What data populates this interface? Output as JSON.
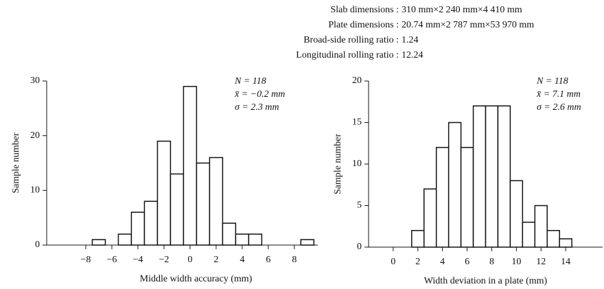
{
  "header": {
    "lines": [
      {
        "label": "Slab dimensions :",
        "value": "310 mm×2 240 mm×4 410 mm"
      },
      {
        "label": "Plate dimensions :",
        "value": "20.74 mm×2 787 mm×53 970 mm"
      },
      {
        "label": "Broad-side rolling ratio :",
        "value": "1.24"
      },
      {
        "label": "Longitudinal rolling ratio :",
        "value": "12.24"
      }
    ]
  },
  "chart_data": [
    {
      "type": "histogram",
      "xlabel": "Middle width accuracy (mm)",
      "ylabel": "Sample number",
      "bins": [
        -7.5,
        -6.5,
        -5.5,
        -4.5,
        -3.5,
        -2.5,
        -1.5,
        -0.5,
        0.5,
        1.5,
        2.5,
        3.5,
        4.5,
        5.5,
        6.5,
        7.5,
        8.5,
        9.5
      ],
      "counts": [
        1,
        0,
        2,
        6,
        8,
        19,
        13,
        29,
        15,
        16,
        4,
        2,
        2,
        0,
        0,
        0,
        1
      ],
      "xlim": [
        -11,
        9.8
      ],
      "ylim": [
        0,
        30
      ],
      "xticks": [
        {
          "value": -8,
          "label": "−8"
        },
        {
          "value": -6,
          "label": "−6"
        },
        {
          "value": -4,
          "label": "−4"
        },
        {
          "value": -2,
          "label": "−2"
        },
        0,
        2,
        4,
        6,
        8
      ],
      "yticks": [
        0,
        10,
        20,
        30
      ],
      "stats": [
        "N = 118",
        "x̄ = −0.2 mm",
        "σ = 2.3 mm"
      ],
      "color": "#ffffff"
    },
    {
      "type": "histogram",
      "xlabel": "Width deviation in a plate (mm)",
      "ylabel": "Sample number",
      "bins": [
        1.5,
        2.5,
        3.5,
        4.5,
        5.5,
        6.5,
        7.5,
        8.5,
        9.5,
        10.5,
        11.5,
        12.5,
        13.5,
        14.5
      ],
      "counts": [
        2,
        7,
        12,
        15,
        12,
        17,
        17,
        17,
        8,
        3,
        5,
        2,
        1
      ],
      "xlim": [
        -2,
        17
      ],
      "ylim": [
        0,
        20
      ],
      "xticks": [
        0,
        2,
        4,
        6,
        8,
        10,
        12,
        14
      ],
      "yticks": [
        0,
        5,
        10,
        15,
        20
      ],
      "stats": [
        "N = 118",
        "x̄ = 7.1 mm",
        "σ = 2.6 mm"
      ],
      "color": "#ffffff"
    }
  ]
}
